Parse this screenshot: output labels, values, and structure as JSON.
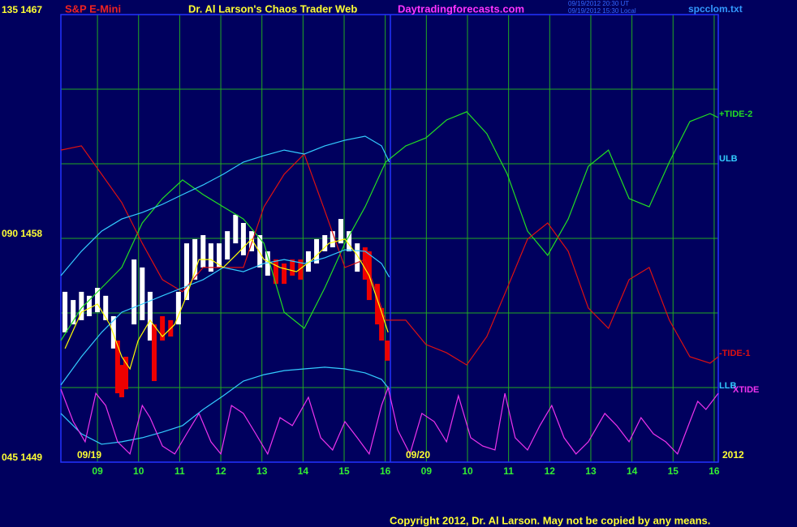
{
  "chart_data": {
    "type": "line",
    "title": "Dr. Al Larson's Chaos Trader Web",
    "symbol": "S&P E-Mini",
    "site": "Daytradingforecasts.com",
    "timestamp_ut": "09/19/2012 20:30 UT",
    "timestamp_local": "09/19/2012 15:30 Local",
    "file": "spcclom.txt",
    "copyright": "Copyright 2012, Dr. Al Larson. May not be copied by any means.",
    "date_labels": [
      "09/19",
      "09/20",
      "2012"
    ],
    "xlim": [
      0.11,
      16.1
    ],
    "xticks": [
      {
        "value": 1,
        "label": "09"
      },
      {
        "value": 2,
        "label": "10"
      },
      {
        "value": 3,
        "label": "11"
      },
      {
        "value": 4,
        "label": "12"
      },
      {
        "value": 5,
        "label": "13"
      },
      {
        "value": 6,
        "label": "14"
      },
      {
        "value": 7,
        "label": "15"
      },
      {
        "value": 8,
        "label": "16"
      },
      {
        "value": 9,
        "label": "09"
      },
      {
        "value": 10,
        "label": "10"
      },
      {
        "value": 11,
        "label": "11"
      },
      {
        "value": 12,
        "label": "12"
      },
      {
        "value": 13,
        "label": "13"
      },
      {
        "value": 14,
        "label": "14"
      },
      {
        "value": 15,
        "label": "15"
      },
      {
        "value": 16,
        "label": "16"
      }
    ],
    "ylim": [
      1449,
      1467
    ],
    "yticks": [
      {
        "value": 1449,
        "label": "045  1449"
      },
      {
        "value": 1458,
        "label": "090  1458"
      },
      {
        "value": 1467,
        "label": "135  1467"
      }
    ],
    "ygrid": [
      1452,
      1455,
      1458,
      1461,
      1464
    ],
    "grid": true,
    "bars": {
      "x": [
        0.21,
        0.41,
        0.61,
        0.8,
        1.0,
        1.2,
        1.39,
        1.49,
        1.59,
        1.69,
        1.89,
        2.09,
        2.28,
        2.38,
        2.58,
        2.78,
        2.97,
        3.17,
        3.37,
        3.57,
        3.76,
        3.96,
        4.16,
        4.36,
        4.55,
        4.75,
        4.95,
        5.14,
        5.34,
        5.54,
        5.74,
        5.94,
        6.13,
        6.33,
        6.53,
        6.72,
        6.92,
        7.12,
        7.32,
        7.51,
        7.61,
        7.81,
        7.91,
        8.05
      ],
      "high": [
        1455.85,
        1455.52,
        1455.85,
        1455.69,
        1456.01,
        1455.69,
        1454.87,
        1453.89,
        1452.91,
        1453.24,
        1457.15,
        1456.83,
        1455.85,
        1454.54,
        1454.87,
        1454.71,
        1455.85,
        1457.8,
        1457.97,
        1458.13,
        1457.8,
        1457.8,
        1458.29,
        1458.95,
        1458.62,
        1458.29,
        1458.13,
        1457.48,
        1457.15,
        1456.99,
        1457.15,
        1457.15,
        1457.48,
        1457.97,
        1458.13,
        1458.29,
        1458.78,
        1458.29,
        1457.8,
        1457.64,
        1457.48,
        1456.17,
        1455.2,
        1453.89
      ],
      "low": [
        1454.22,
        1454.54,
        1454.71,
        1454.87,
        1455.03,
        1454.71,
        1453.57,
        1451.77,
        1451.61,
        1451.93,
        1454.54,
        1454.71,
        1453.89,
        1452.26,
        1453.89,
        1454.05,
        1454.54,
        1455.52,
        1456.34,
        1456.83,
        1456.66,
        1456.83,
        1457.15,
        1457.8,
        1457.32,
        1457.48,
        1456.83,
        1456.5,
        1456.17,
        1456.17,
        1456.5,
        1456.34,
        1456.66,
        1456.99,
        1457.48,
        1457.64,
        1457.8,
        1457.48,
        1456.66,
        1456.34,
        1455.52,
        1454.54,
        1453.89,
        1453.08
      ],
      "colors": [
        "#ffffff",
        "#ffffff",
        "#ffffff",
        "#ffffff",
        "#ffffff",
        "#ffffff",
        "#ffffff",
        "#ee0000",
        "#ee0000",
        "#ee0000",
        "#ffffff",
        "#ffffff",
        "#ffffff",
        "#ee0000",
        "#ee0000",
        "#ee0000",
        "#ffffff",
        "#ffffff",
        "#ffffff",
        "#ffffff",
        "#ffffff",
        "#ffffff",
        "#ffffff",
        "#ffffff",
        "#ffffff",
        "#ffffff",
        "#ffffff",
        "#ffffff",
        "#ee0000",
        "#ee0000",
        "#ee0000",
        "#ee0000",
        "#ffffff",
        "#ffffff",
        "#ffffff",
        "#ffffff",
        "#ffffff",
        "#ffffff",
        "#ffffff",
        "#ee0000",
        "#ee0000",
        "#ee0000",
        "#ee0000",
        "#ee0000"
      ]
    },
    "series": [
      {
        "name": "+TIDE-2",
        "color": "#22dd22",
        "x": [
          0.11,
          0.61,
          1.1,
          1.59,
          2.09,
          2.58,
          3.07,
          3.57,
          4.06,
          4.55,
          5.05,
          5.54,
          6.03,
          6.53,
          7.02,
          7.51,
          8.01,
          8.5,
          8.99,
          9.49,
          9.98,
          10.47,
          10.97,
          11.46,
          11.95,
          12.45,
          12.94,
          13.43,
          13.93,
          14.42,
          14.91,
          15.41,
          15.9,
          16.1
        ],
        "values": [
          1453.89,
          1455.2,
          1456.01,
          1456.83,
          1458.62,
          1459.6,
          1460.35,
          1459.76,
          1459.27,
          1458.78,
          1457.8,
          1455.03,
          1454.38,
          1456.01,
          1457.8,
          1459.27,
          1461.07,
          1461.72,
          1462.04,
          1462.76,
          1463.09,
          1462.21,
          1460.58,
          1458.29,
          1457.32,
          1458.78,
          1460.9,
          1461.55,
          1459.6,
          1459.27,
          1461.07,
          1462.7,
          1463.02,
          1462.86
        ]
      },
      {
        "name": "-TIDE-1",
        "color": "#dd1111",
        "x": [
          0.11,
          0.61,
          1.1,
          1.59,
          2.09,
          2.58,
          3.07,
          3.57,
          4.06,
          4.55,
          5.05,
          5.54,
          6.03,
          6.53,
          7.02,
          7.51,
          8.01,
          8.5,
          8.99,
          9.49,
          9.98,
          10.47,
          10.97,
          11.46,
          11.95,
          12.45,
          12.94,
          13.43,
          13.93,
          14.42,
          14.91,
          15.41,
          15.9,
          16.1
        ],
        "values": [
          1461.55,
          1461.72,
          1460.58,
          1459.44,
          1457.8,
          1456.34,
          1455.85,
          1456.83,
          1456.83,
          1456.83,
          1459.27,
          1460.58,
          1461.39,
          1459.11,
          1456.83,
          1457.15,
          1454.71,
          1454.71,
          1453.73,
          1453.4,
          1452.91,
          1454.05,
          1456.01,
          1457.97,
          1458.62,
          1457.48,
          1455.2,
          1454.38,
          1456.34,
          1456.83,
          1454.71,
          1453.24,
          1452.98,
          1453.24
        ]
      },
      {
        "name": "ULB",
        "color": "#33ccff",
        "x": [
          0.11,
          0.61,
          1.1,
          1.59,
          2.09,
          2.58,
          3.07,
          3.57,
          4.06,
          4.55,
          5.05,
          5.54,
          6.03,
          6.53,
          7.02,
          7.51,
          7.91,
          8.1
        ],
        "values": [
          1456.5,
          1457.48,
          1458.29,
          1458.78,
          1459.04,
          1459.37,
          1459.76,
          1460.15,
          1460.58,
          1461.07,
          1461.33,
          1461.55,
          1461.39,
          1461.72,
          1461.95,
          1462.11,
          1461.72,
          1461.07
        ]
      },
      {
        "color": "#33ccff",
        "x": [
          0.11,
          0.61,
          1.1,
          1.59,
          2.09,
          2.58,
          3.07,
          3.57,
          4.06,
          4.55,
          5.05,
          5.54,
          6.03,
          6.53,
          7.02,
          7.51,
          7.91,
          8.1
        ],
        "values": [
          1452.1,
          1453.24,
          1454.22,
          1455.03,
          1455.36,
          1455.69,
          1456.01,
          1456.34,
          1456.83,
          1456.66,
          1456.99,
          1457.15,
          1456.99,
          1457.22,
          1457.54,
          1457.48,
          1456.99,
          1456.44
        ]
      },
      {
        "name": "LLB",
        "color": "#33ccff",
        "x": [
          0.11,
          0.61,
          1.1,
          1.59,
          2.09,
          2.58,
          3.07,
          3.57,
          4.06,
          4.55,
          5.05,
          5.54,
          6.03,
          6.53,
          7.02,
          7.51,
          7.91,
          8.1
        ],
        "values": [
          1450.96,
          1450.14,
          1449.72,
          1449.82,
          1449.98,
          1450.21,
          1450.47,
          1451.12,
          1451.67,
          1452.26,
          1452.52,
          1452.68,
          1452.75,
          1452.82,
          1452.75,
          1452.59,
          1452.33,
          1451.93
        ]
      },
      {
        "name": "XTIDE",
        "color": "#ee33ee",
        "x": [
          0.11,
          0.41,
          0.7,
          0.96,
          1.2,
          1.49,
          1.79,
          2.09,
          2.28,
          2.58,
          2.88,
          3.17,
          3.47,
          3.76,
          4.0,
          4.26,
          4.55,
          4.85,
          5.14,
          5.44,
          5.74,
          6.13,
          6.43,
          6.72,
          7.02,
          7.32,
          7.61,
          7.91,
          8.07,
          8.3,
          8.6,
          8.89,
          9.19,
          9.49,
          9.78,
          10.08,
          10.37,
          10.67,
          10.91,
          11.16,
          11.46,
          11.76,
          12.05,
          12.35,
          12.64,
          12.94,
          13.34,
          13.63,
          13.93,
          14.22,
          14.52,
          14.82,
          15.11,
          15.41,
          15.6,
          15.8,
          16.1
        ],
        "values": [
          1451.93,
          1450.63,
          1449.82,
          1451.77,
          1451.28,
          1449.82,
          1449.33,
          1451.28,
          1450.79,
          1449.65,
          1449.33,
          1450.14,
          1450.96,
          1449.82,
          1449.33,
          1451.28,
          1450.96,
          1450.14,
          1449.33,
          1450.79,
          1450.47,
          1451.61,
          1449.98,
          1449.49,
          1450.63,
          1449.98,
          1449.33,
          1451.28,
          1452.0,
          1450.3,
          1449.33,
          1450.96,
          1450.63,
          1449.82,
          1451.67,
          1449.98,
          1449.65,
          1449.49,
          1451.77,
          1449.98,
          1449.49,
          1450.47,
          1451.28,
          1449.98,
          1449.33,
          1449.82,
          1450.96,
          1450.47,
          1449.82,
          1450.79,
          1450.14,
          1449.82,
          1449.33,
          1450.63,
          1451.45,
          1451.12,
          1451.77
        ]
      },
      {
        "color": "#ffff00",
        "x": [
          0.21,
          0.61,
          1.0,
          1.3,
          1.59,
          1.79,
          1.99,
          2.28,
          2.58,
          2.88,
          3.17,
          3.47,
          3.76,
          4.06,
          4.36,
          4.75,
          5.05,
          5.44,
          5.84,
          6.23,
          6.63,
          7.02,
          7.32,
          7.61,
          7.91,
          8.07
        ],
        "values": [
          1453.57,
          1455.03,
          1455.36,
          1454.54,
          1453.24,
          1452.75,
          1453.89,
          1454.71,
          1454.05,
          1454.54,
          1455.69,
          1457.15,
          1457.15,
          1456.83,
          1457.32,
          1457.97,
          1457.15,
          1456.83,
          1456.66,
          1457.15,
          1457.8,
          1457.97,
          1457.32,
          1456.5,
          1455.03,
          1454.22
        ]
      }
    ]
  }
}
